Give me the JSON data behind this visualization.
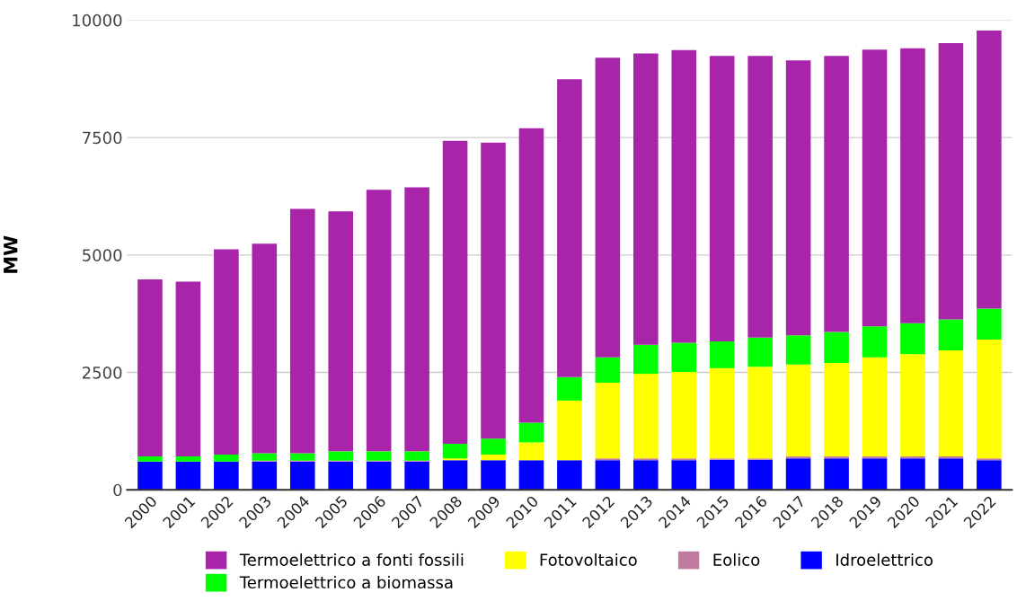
{
  "chart_data": {
    "type": "bar",
    "stacked": true,
    "ylabel": "MW",
    "categories": [
      "2000",
      "2001",
      "2002",
      "2003",
      "2004",
      "2005",
      "2006",
      "2007",
      "2008",
      "2009",
      "2010",
      "2011",
      "2012",
      "2013",
      "2014",
      "2015",
      "2016",
      "2017",
      "2018",
      "2019",
      "2020",
      "2021",
      "2022"
    ],
    "series": [
      {
        "name": "Idroelettrico",
        "color": "#0000ff",
        "values": [
          600,
          600,
          600,
          600,
          600,
          600,
          600,
          600,
          630,
          630,
          630,
          630,
          630,
          630,
          630,
          640,
          640,
          670,
          670,
          670,
          670,
          670,
          630
        ]
      },
      {
        "name": "Eolico",
        "color": "#c27ba0",
        "values": [
          0,
          0,
          0,
          20,
          20,
          20,
          20,
          20,
          null,
          null,
          null,
          null,
          40,
          40,
          40,
          30,
          30,
          40,
          40,
          40,
          40,
          40,
          40
        ]
      },
      {
        "name": "Fotovoltaico",
        "color": "#ffff00",
        "values": [
          0,
          0,
          0,
          0,
          0,
          0,
          0,
          0,
          40,
          120,
          380,
          1270,
          1610,
          1800,
          1840,
          1920,
          1950,
          1960,
          1990,
          2110,
          2180,
          2260,
          2530
        ]
      },
      {
        "name": "Termoelettrico a biomassa",
        "color": "#00ff00",
        "values": [
          110,
          110,
          150,
          160,
          160,
          200,
          200,
          200,
          310,
          340,
          420,
          500,
          540,
          620,
          620,
          570,
          620,
          620,
          660,
          660,
          660,
          660,
          660
        ]
      },
      {
        "name": "Termoelettrico a fonti fossili",
        "color": "#a824a8",
        "values": [
          3770,
          3720,
          4370,
          4460,
          5200,
          5110,
          5570,
          5620,
          6450,
          6300,
          6270,
          6340,
          6380,
          6200,
          6230,
          6080,
          6000,
          5850,
          5880,
          5890,
          5850,
          5880,
          5920
        ]
      }
    ],
    "ylim": [
      0,
      10000
    ],
    "yticks": [
      0,
      2500,
      5000,
      7500,
      10000
    ],
    "grid": "y",
    "legend": "bottom"
  }
}
